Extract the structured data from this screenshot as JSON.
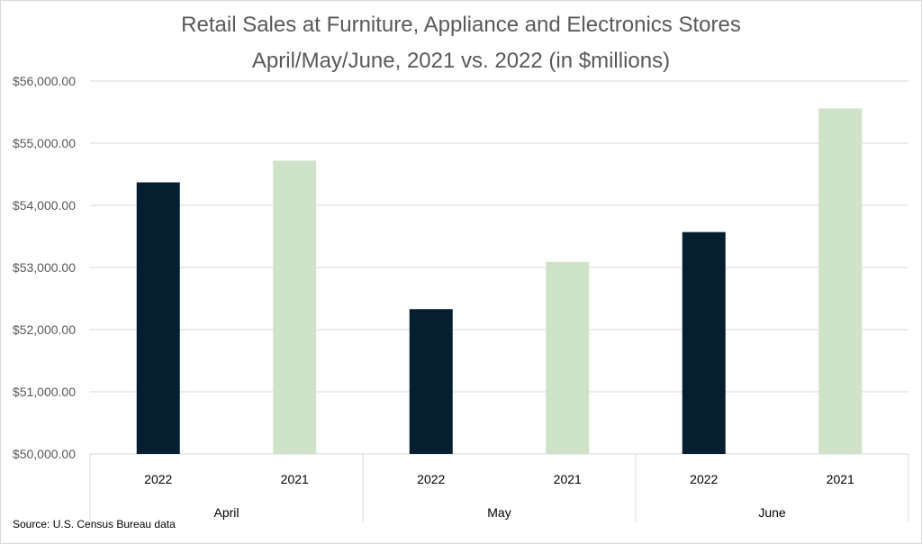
{
  "chart_data": {
    "type": "bar",
    "title": "Retail Sales at Furniture, Appliance and Electronics Stores",
    "subtitle": "April/May/June, 2021 vs. 2022 (in $millions)",
    "ylim": [
      50000,
      56000
    ],
    "yticks": [
      50000,
      51000,
      52000,
      53000,
      54000,
      55000,
      56000
    ],
    "ytick_labels": [
      "$50,000.00",
      "$51,000.00",
      "$52,000.00",
      "$53,000.00",
      "$54,000.00",
      "$55,000.00",
      "$56,000.00"
    ],
    "grid": true,
    "groups": [
      {
        "label": "April",
        "bars": [
          {
            "label": "2022",
            "value": 54370,
            "color": "#061f30"
          },
          {
            "label": "2021",
            "value": 54720,
            "color": "#cfe3c9"
          }
        ]
      },
      {
        "label": "May",
        "bars": [
          {
            "label": "2022",
            "value": 52330,
            "color": "#061f30"
          },
          {
            "label": "2021",
            "value": 53090,
            "color": "#cfe3c9"
          }
        ]
      },
      {
        "label": "June",
        "bars": [
          {
            "label": "2022",
            "value": 53570,
            "color": "#061f30"
          },
          {
            "label": "2021",
            "value": 55560,
            "color": "#cfe3c9"
          }
        ]
      }
    ]
  },
  "source_note": "Source: U.S. Census Bureau data"
}
